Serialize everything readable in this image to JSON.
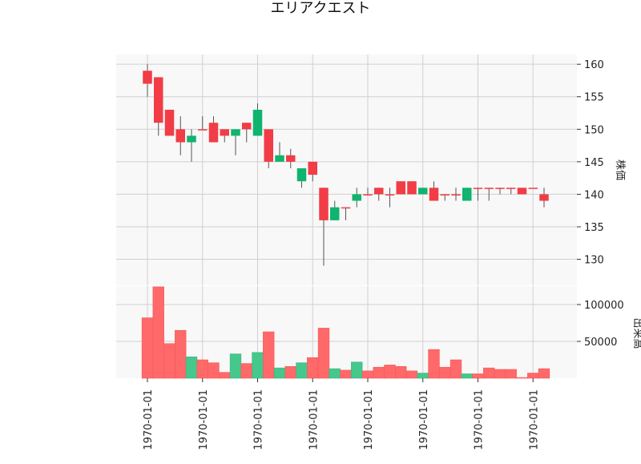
{
  "chart_data": {
    "type": "candlestick",
    "title": "エリアクエスト",
    "price_axis_label": "株価",
    "volume_axis_label": "出来高",
    "price_ylim": [
      126,
      161.5
    ],
    "price_ticks": [
      130,
      135,
      140,
      145,
      150,
      155,
      160
    ],
    "volume_ylim": [
      0,
      125000
    ],
    "volume_ticks": [
      50000,
      100000
    ],
    "volume_tick_labels": [
      "50000",
      "100000"
    ],
    "x_tick_labels": [
      "1970-01-01",
      "1970-01-01",
      "1970-01-01",
      "1970-01-01",
      "1970-01-01",
      "1970-01-01",
      "1970-01-01",
      "1970-01-01"
    ],
    "x_tick_indices": [
      0,
      5,
      10,
      15,
      20,
      25,
      30,
      35
    ],
    "up_color": "#0fb46e",
    "down_color": "#f23c46",
    "up_volume_color": "#45c88c",
    "down_volume_color": "#ff6969",
    "grid": true,
    "candles": [
      {
        "open": 159,
        "high": 160,
        "low": 155,
        "close": 157,
        "volume": 82000
      },
      {
        "open": 158,
        "high": 158,
        "low": 149,
        "close": 151,
        "volume": 124000
      },
      {
        "open": 153,
        "high": 153,
        "low": 149,
        "close": 149,
        "volume": 47000
      },
      {
        "open": 150,
        "high": 152,
        "low": 146,
        "close": 148,
        "volume": 65000
      },
      {
        "open": 148,
        "high": 150,
        "low": 145,
        "close": 149,
        "volume": 29000
      },
      {
        "open": 150,
        "high": 152,
        "low": 150,
        "close": 150,
        "volume": 25000
      },
      {
        "open": 151,
        "high": 152,
        "low": 148,
        "close": 148,
        "volume": 21000
      },
      {
        "open": 150,
        "high": 150,
        "low": 148,
        "close": 149,
        "volume": 8000
      },
      {
        "open": 149,
        "high": 150,
        "low": 146,
        "close": 150,
        "volume": 33000
      },
      {
        "open": 151,
        "high": 151,
        "low": 148,
        "close": 150,
        "volume": 20000
      },
      {
        "open": 149,
        "high": 154,
        "low": 149,
        "close": 153,
        "volume": 35000
      },
      {
        "open": 150,
        "high": 150,
        "low": 144,
        "close": 145,
        "volume": 63000
      },
      {
        "open": 145,
        "high": 148,
        "low": 145,
        "close": 146,
        "volume": 14000
      },
      {
        "open": 146,
        "high": 147,
        "low": 144,
        "close": 145,
        "volume": 16000
      },
      {
        "open": 142,
        "high": 144,
        "low": 141,
        "close": 144,
        "volume": 21000
      },
      {
        "open": 145,
        "high": 145,
        "low": 142,
        "close": 143,
        "volume": 28000
      },
      {
        "open": 141,
        "high": 141,
        "low": 129,
        "close": 136,
        "volume": 68000
      },
      {
        "open": 136,
        "high": 139,
        "low": 136,
        "close": 138,
        "volume": 13000
      },
      {
        "open": 138,
        "high": 138,
        "low": 136,
        "close": 138,
        "volume": 11000
      },
      {
        "open": 139,
        "high": 141,
        "low": 138,
        "close": 140,
        "volume": 22000
      },
      {
        "open": 140,
        "high": 141,
        "low": 140,
        "close": 140,
        "volume": 10000
      },
      {
        "open": 141,
        "high": 141,
        "low": 139,
        "close": 140,
        "volume": 15000
      },
      {
        "open": 140,
        "high": 141,
        "low": 138,
        "close": 140,
        "volume": 18000
      },
      {
        "open": 142,
        "high": 142,
        "low": 140,
        "close": 140,
        "volume": 16000
      },
      {
        "open": 142,
        "high": 142,
        "low": 140,
        "close": 140,
        "volume": 10000
      },
      {
        "open": 140,
        "high": 141,
        "low": 140,
        "close": 141,
        "volume": 7000
      },
      {
        "open": 141,
        "high": 142,
        "low": 139,
        "close": 139,
        "volume": 39000
      },
      {
        "open": 140,
        "high": 140,
        "low": 139,
        "close": 140,
        "volume": 15000
      },
      {
        "open": 140,
        "high": 141,
        "low": 139,
        "close": 140,
        "volume": 25000
      },
      {
        "open": 139,
        "high": 141,
        "low": 139,
        "close": 141,
        "volume": 6000
      },
      {
        "open": 141,
        "high": 141,
        "low": 139,
        "close": 141,
        "volume": 6000
      },
      {
        "open": 141,
        "high": 141,
        "low": 139,
        "close": 141,
        "volume": 14000
      },
      {
        "open": 141,
        "high": 141,
        "low": 140,
        "close": 141,
        "volume": 12000
      },
      {
        "open": 141,
        "high": 141,
        "low": 140,
        "close": 141,
        "volume": 12000
      },
      {
        "open": 141,
        "high": 141,
        "low": 140,
        "close": 140,
        "volume": 1000
      },
      {
        "open": 141,
        "high": 141,
        "low": 141,
        "close": 141,
        "volume": 7000
      },
      {
        "open": 140,
        "high": 141,
        "low": 138,
        "close": 139,
        "volume": 13000
      }
    ]
  }
}
